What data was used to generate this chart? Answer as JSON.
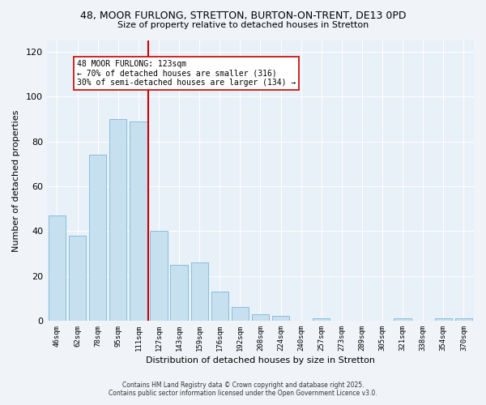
{
  "title": "48, MOOR FURLONG, STRETTON, BURTON-ON-TRENT, DE13 0PD",
  "subtitle": "Size of property relative to detached houses in Stretton",
  "xlabel": "Distribution of detached houses by size in Stretton",
  "ylabel": "Number of detached properties",
  "bar_color": "#c6e0f0",
  "bar_edge_color": "#7ab8d8",
  "background_color": "#f0f4f8",
  "plot_bg_color": "#e8f0f8",
  "grid_color": "#ffffff",
  "categories": [
    "46sqm",
    "62sqm",
    "78sqm",
    "95sqm",
    "111sqm",
    "127sqm",
    "143sqm",
    "159sqm",
    "176sqm",
    "192sqm",
    "208sqm",
    "224sqm",
    "240sqm",
    "257sqm",
    "273sqm",
    "289sqm",
    "305sqm",
    "321sqm",
    "338sqm",
    "354sqm",
    "370sqm"
  ],
  "values": [
    47,
    38,
    74,
    90,
    89,
    40,
    25,
    26,
    13,
    6,
    3,
    2,
    0,
    1,
    0,
    0,
    0,
    1,
    0,
    1,
    1
  ],
  "ylim": [
    0,
    125
  ],
  "yticks": [
    0,
    20,
    40,
    60,
    80,
    100,
    120
  ],
  "vline_color": "#cc0000",
  "annotation_title": "48 MOOR FURLONG: 123sqm",
  "annotation_line1": "← 70% of detached houses are smaller (316)",
  "annotation_line2": "30% of semi-detached houses are larger (134) →",
  "annotation_box_color": "#ffffff",
  "annotation_box_edge": "#cc0000",
  "footnote1": "Contains HM Land Registry data © Crown copyright and database right 2025.",
  "footnote2": "Contains public sector information licensed under the Open Government Licence v3.0."
}
